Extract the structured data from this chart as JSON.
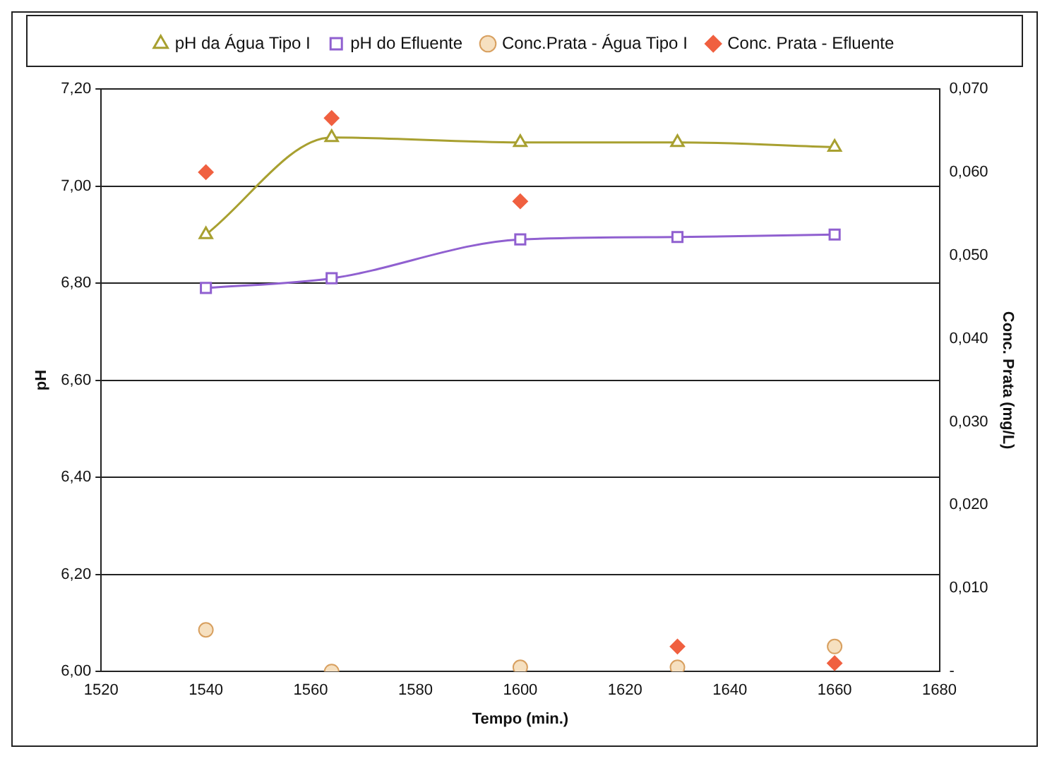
{
  "chart_data": {
    "type": "line",
    "xlabel": "Tempo (min.)",
    "ylabel": "pH",
    "y2label": "Conc. Prata (mg/L)",
    "x": [
      1540,
      1564,
      1600,
      1630,
      1660
    ],
    "series": [
      {
        "name": "pH da Água Tipo I",
        "type": "line",
        "color": "#a8a030",
        "marker": "triangle",
        "values": [
          6.9,
          7.1,
          7.09,
          7.09,
          7.08
        ]
      },
      {
        "name": "pH do Efluente",
        "type": "line",
        "color": "#9060d0",
        "marker": "square",
        "values": [
          6.79,
          6.81,
          6.89,
          6.895,
          6.9
        ]
      },
      {
        "name": "Conc.Prata - Água Tipo I",
        "type": "scatter",
        "axis": "y2",
        "color": "#d8a060",
        "marker": "circle",
        "values": [
          0.005,
          0.0,
          0.0005,
          0.0005,
          0.003
        ]
      },
      {
        "name": "Conc. Prata - Efluente",
        "type": "scatter",
        "axis": "y2",
        "color": "#f06040",
        "marker": "diamond",
        "values": [
          0.06,
          0.0665,
          0.0565,
          0.003,
          0.001
        ]
      }
    ],
    "xlim": [
      1520,
      1680
    ],
    "xticks": [
      1520,
      1540,
      1560,
      1580,
      1600,
      1620,
      1640,
      1660,
      1680
    ],
    "ylim": [
      6.0,
      7.2
    ],
    "yticks": [
      {
        "value": 6.0,
        "label": "6,00"
      },
      {
        "value": 6.2,
        "label": "6,20"
      },
      {
        "value": 6.4,
        "label": "6,40"
      },
      {
        "value": 6.6,
        "label": "6,60"
      },
      {
        "value": 6.8,
        "label": "6,80"
      },
      {
        "value": 7.0,
        "label": "7,00"
      },
      {
        "value": 7.2,
        "label": "7,20"
      }
    ],
    "y2lim": [
      0,
      0.07
    ],
    "y2ticks": [
      {
        "value": 0,
        "label": "-"
      },
      {
        "value": 0.01,
        "label": "0,010"
      },
      {
        "value": 0.02,
        "label": "0,020"
      },
      {
        "value": 0.03,
        "label": "0,030"
      },
      {
        "value": 0.04,
        "label": "0,040"
      },
      {
        "value": 0.05,
        "label": "0,050"
      },
      {
        "value": 0.06,
        "label": "0,060"
      },
      {
        "value": 0.07,
        "label": "0,070"
      }
    ],
    "grid": "y",
    "legend": "top"
  }
}
